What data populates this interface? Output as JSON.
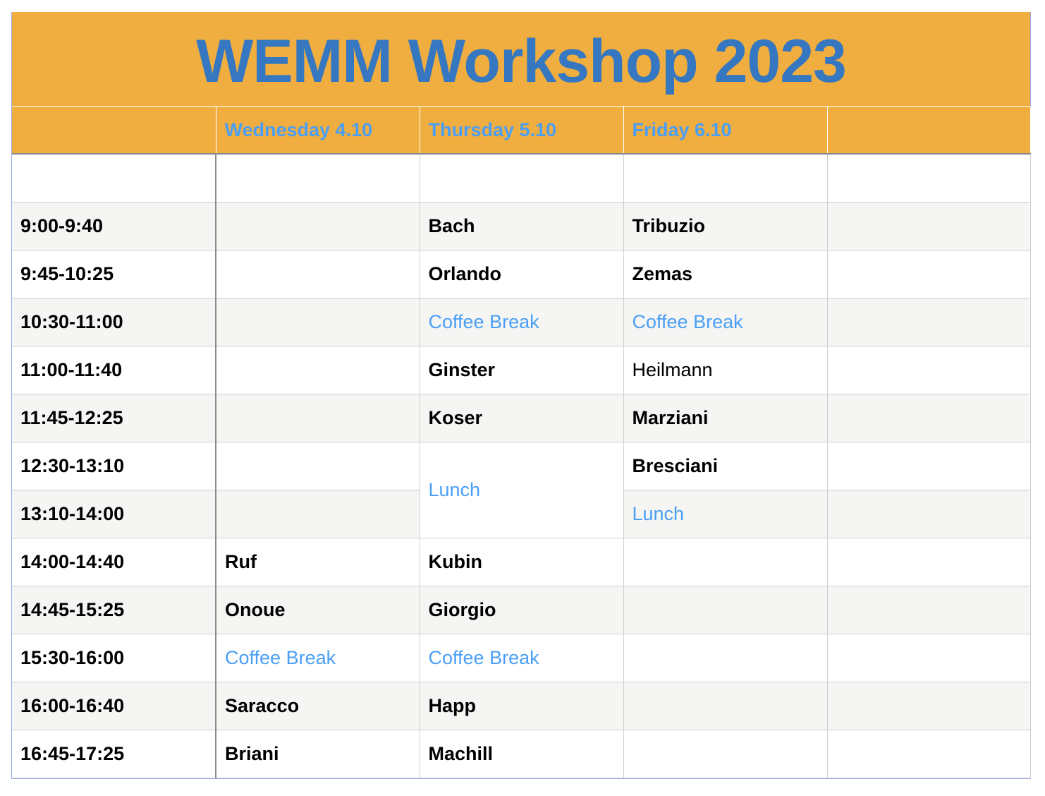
{
  "title": "WEMM Workshop 2023",
  "colors": {
    "header_bg": "#f0ae40",
    "title_text": "#3577c0",
    "break_text": "#4a9ff5",
    "alt_row": "#f5f5f3"
  },
  "columns": [
    "",
    "Wednesday 4.10",
    "Thursday 5.10",
    "Friday 6.10",
    ""
  ],
  "rows": [
    {
      "time": "",
      "wed": "",
      "thu": "",
      "fri": "",
      "extra": ""
    },
    {
      "time": "9:00-9:40",
      "wed": "",
      "thu": "Bach",
      "fri": "Tribuzio",
      "extra": ""
    },
    {
      "time": "9:45-10:25",
      "wed": "",
      "thu": "Orlando",
      "fri": "Zemas",
      "extra": ""
    },
    {
      "time": "10:30-11:00",
      "wed": "",
      "thu": "Coffee Break",
      "fri": "Coffee Break",
      "extra": ""
    },
    {
      "time": "11:00-11:40",
      "wed": "",
      "thu": "Ginster",
      "fri": "Heilmann",
      "extra": ""
    },
    {
      "time": "11:45-12:25",
      "wed": "",
      "thu": "Koser",
      "fri": "Marziani",
      "extra": ""
    },
    {
      "time": "12:30-13:10",
      "wed": "",
      "thu": "Lunch",
      "fri": "Bresciani",
      "extra": ""
    },
    {
      "time": "13:10-14:00",
      "wed": "",
      "thu": null,
      "fri": "Lunch",
      "extra": ""
    },
    {
      "time": "14:00-14:40",
      "wed": "Ruf",
      "thu": "Kubin",
      "fri": "",
      "extra": ""
    },
    {
      "time": "14:45-15:25",
      "wed": "Onoue",
      "thu": "Giorgio",
      "fri": "",
      "extra": ""
    },
    {
      "time": "15:30-16:00",
      "wed": "Coffee Break",
      "thu": "Coffee Break",
      "fri": "",
      "extra": ""
    },
    {
      "time": "16:00-16:40",
      "wed": "Saracco",
      "thu": "Happ",
      "fri": "",
      "extra": ""
    },
    {
      "time": "16:45-17:25",
      "wed": "Briani",
      "thu": "Machill",
      "fri": "",
      "extra": ""
    }
  ]
}
